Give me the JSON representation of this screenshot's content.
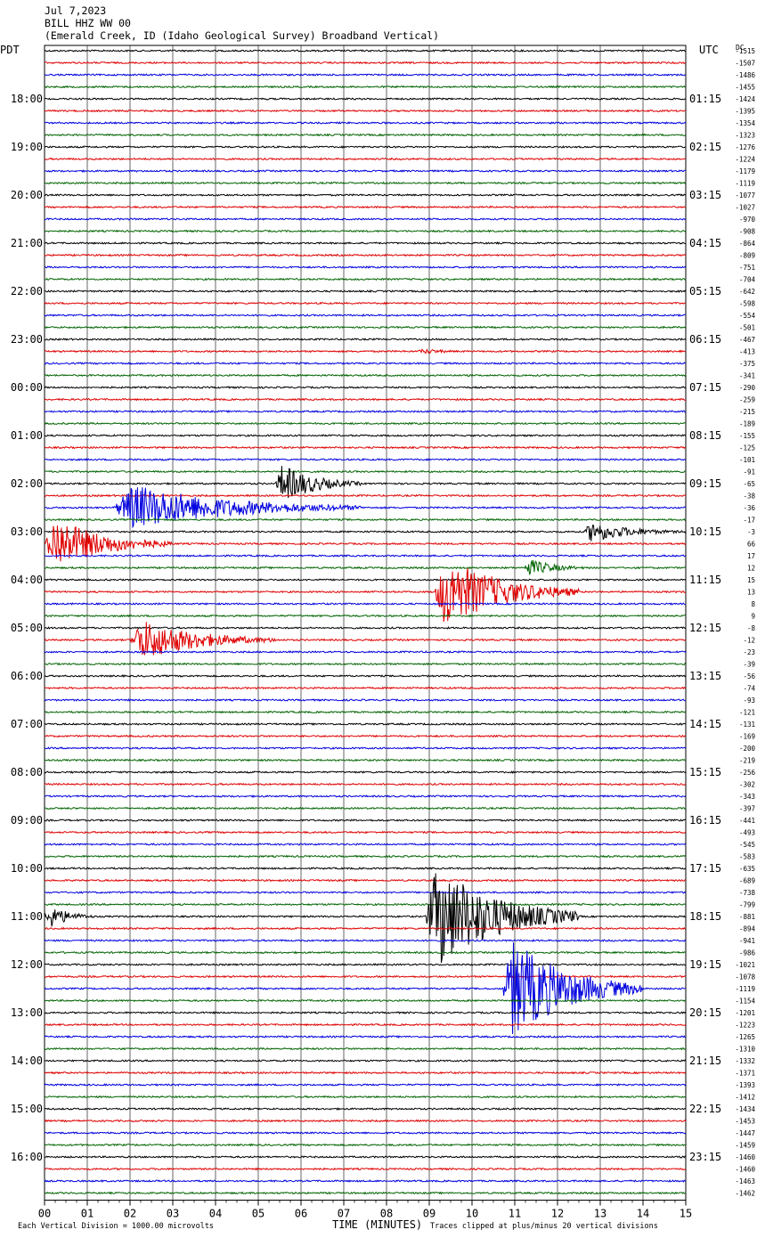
{
  "header": {
    "date": "Jul 7,2023",
    "station": "BILL HHZ WW 00",
    "location": "(Emerald Creek, ID (Idaho Geological Survey) Broadband Vertical)"
  },
  "left_tz": "PDT",
  "right_tz": "UTC",
  "dc_label": "DC",
  "footer": {
    "left_note": "Each Vertical Division = 1000.00 microvolts",
    "center_note": "TIME (MINUTES)",
    "right_note": "Traces clipped at plus/minus 20 vertical divisions"
  },
  "chart_data": {
    "type": "line",
    "title": "BILL HHZ WW 00",
    "xlabel": "TIME (MINUTES)",
    "xlim": [
      0,
      15
    ],
    "x_ticks": [
      "00",
      "01",
      "02",
      "03",
      "04",
      "05",
      "06",
      "07",
      "08",
      "09",
      "10",
      "11",
      "12",
      "13",
      "14",
      "15"
    ],
    "trace_count": 96,
    "trace_minutes": 15,
    "trace_colors": [
      "#000000",
      "#e00000",
      "#0000e0",
      "#006400"
    ],
    "left_hour_labels": [
      "18:00",
      "19:00",
      "20:00",
      "21:00",
      "22:00",
      "23:00",
      "00:00",
      "01:00",
      "02:00",
      "03:00",
      "04:00",
      "05:00",
      "06:00",
      "07:00",
      "08:00",
      "09:00",
      "10:00",
      "11:00",
      "12:00",
      "13:00",
      "14:00",
      "15:00",
      "16:00"
    ],
    "right_hour_labels": [
      "01:15",
      "02:15",
      "03:15",
      "04:15",
      "05:15",
      "06:15",
      "07:15",
      "08:15",
      "09:15",
      "10:15",
      "11:15",
      "12:15",
      "13:15",
      "14:15",
      "15:15",
      "16:15",
      "17:15",
      "18:15",
      "19:15",
      "20:15",
      "21:15",
      "22:15",
      "23:15"
    ],
    "dc_offsets": [
      "-1515",
      "-1507",
      "-1486",
      "-1455",
      "-1424",
      "-1395",
      "-1354",
      "-1323",
      "-1276",
      "-1224",
      "-1179",
      "-1119",
      "-1077",
      "-1027",
      "-970",
      "-908",
      "-864",
      "-809",
      "-751",
      "-704",
      "-642",
      "-598",
      "-554",
      "-501",
      "-467",
      "-413",
      "-375",
      "-341",
      "-290",
      "-259",
      "-215",
      "-189",
      "-155",
      "-125",
      "-101",
      "-91",
      "-65",
      "-38",
      "-36",
      "-17",
      "-3",
      "66",
      "17",
      "12",
      "15",
      "13",
      "8",
      "9",
      "-8",
      "-12",
      "-23",
      "-39",
      "-56",
      "-74",
      "-93",
      "-121",
      "-131",
      "-169",
      "-200",
      "-219",
      "-256",
      "-302",
      "-343",
      "-397",
      "-441",
      "-493",
      "-545",
      "-583",
      "-635",
      "-689",
      "-738",
      "-799",
      "-881",
      "-894",
      "-941",
      "-986",
      "-1021",
      "-1078",
      "-1119",
      "-1154",
      "-1201",
      "-1223",
      "-1265",
      "-1310",
      "-1332",
      "-1371",
      "-1393",
      "-1412",
      "-1434",
      "-1453",
      "-1447",
      "-1459",
      "-1460",
      "-1460",
      "-1463",
      "-1462"
    ],
    "events": [
      {
        "trace": 25,
        "minute": 8.7,
        "duration": 1.8,
        "amplitude": 3
      },
      {
        "trace": 36,
        "minute": 5.4,
        "duration": 2.0,
        "amplitude": 22
      },
      {
        "trace": 38,
        "minute": 1.6,
        "duration": 5.8,
        "amplitude": 26
      },
      {
        "trace": 40,
        "minute": 12.6,
        "duration": 2.4,
        "amplitude": 12
      },
      {
        "trace": 41,
        "minute": 0.0,
        "duration": 3.0,
        "amplitude": 30
      },
      {
        "trace": 43,
        "minute": 11.2,
        "duration": 1.6,
        "amplitude": 10
      },
      {
        "trace": 45,
        "minute": 9.1,
        "duration": 3.4,
        "amplitude": 40
      },
      {
        "trace": 49,
        "minute": 2.0,
        "duration": 3.4,
        "amplitude": 24
      },
      {
        "trace": 72,
        "minute": 0.0,
        "duration": 1.2,
        "amplitude": 14
      },
      {
        "trace": 72,
        "minute": 8.9,
        "duration": 3.6,
        "amplitude": 60
      },
      {
        "trace": 78,
        "minute": 10.7,
        "duration": 3.3,
        "amplitude": 56
      }
    ]
  }
}
